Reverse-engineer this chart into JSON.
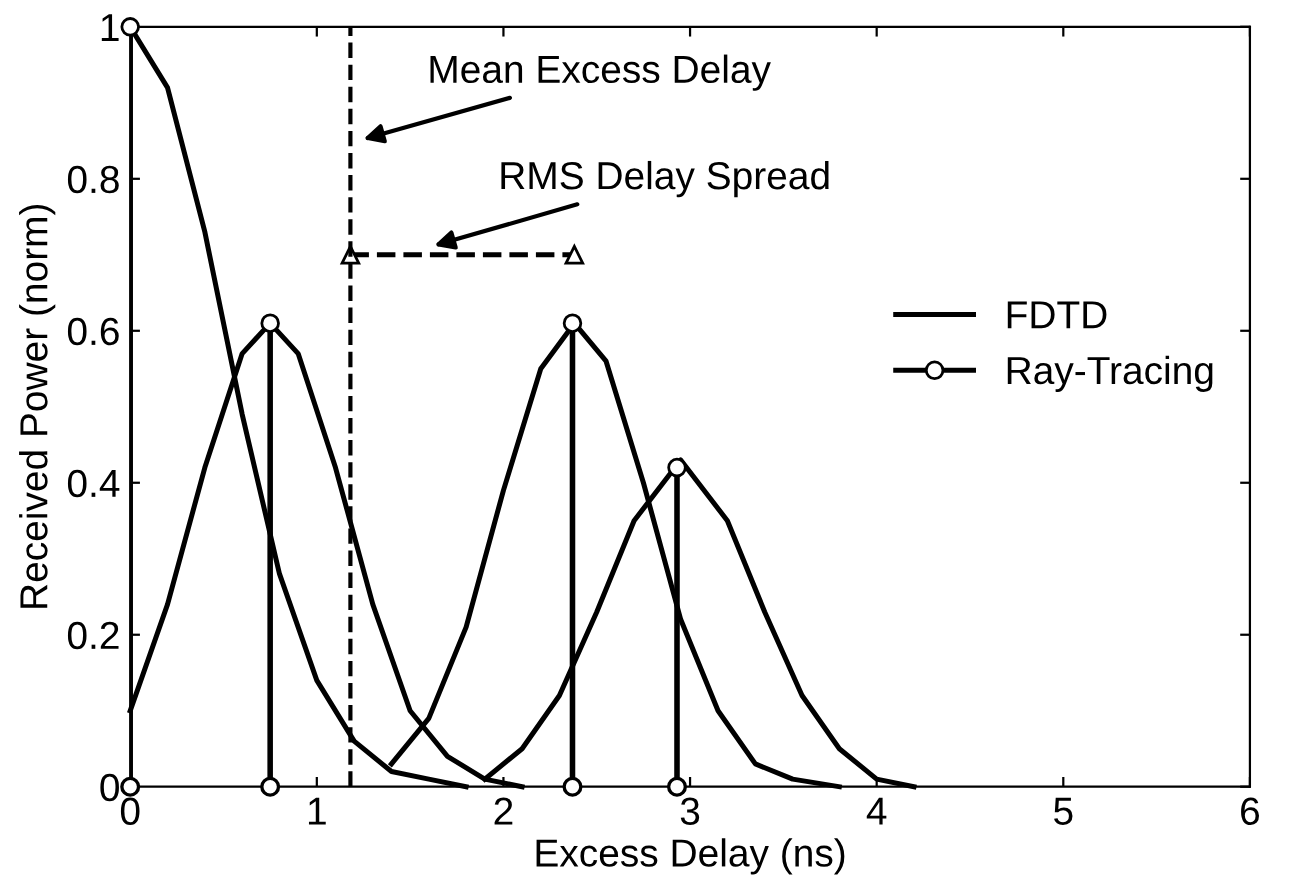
{
  "chart_data": {
    "type": "line",
    "xlabel": "Excess Delay (ns)",
    "ylabel": "Received Power (norm)",
    "xlim": [
      0,
      6
    ],
    "ylim": [
      0,
      1
    ],
    "xticks": [
      0,
      1,
      2,
      3,
      4,
      5,
      6
    ],
    "yticks": [
      0,
      {
        "value": 0.2,
        "label": "0.2"
      },
      {
        "value": 0.4,
        "label": "0.4"
      },
      {
        "value": 0.6,
        "label": "0.6"
      },
      {
        "value": 0.8,
        "label": "0.8"
      },
      1
    ],
    "legend": "right",
    "grid": false,
    "series": [
      {
        "name": "FDTD",
        "color": "#000000",
        "x": [
          0,
          0.2,
          0.4,
          0.6,
          0.8,
          1.0,
          1.2,
          1.4,
          1.6,
          1.8
        ],
        "values": [
          1,
          0.92,
          0.73,
          0.49,
          0.28,
          0.14,
          0.06,
          0.02,
          0.01,
          0
        ]
      },
      {
        "color": "#000000",
        "x": [
          0,
          0.2,
          0.4,
          0.6,
          0.75,
          0.9,
          1.1,
          1.3,
          1.5,
          1.7,
          1.9,
          2.1
        ],
        "values": [
          0.1,
          0.24,
          0.42,
          0.57,
          0.61,
          0.57,
          0.42,
          0.24,
          0.1,
          0.04,
          0.01,
          0
        ]
      },
      {
        "color": "#000000",
        "x": [
          1.4,
          1.6,
          1.8,
          2.0,
          2.2,
          2.38,
          2.55,
          2.75,
          2.95,
          3.15,
          3.35,
          3.55,
          3.8
        ],
        "values": [
          0.03,
          0.09,
          0.21,
          0.39,
          0.55,
          0.61,
          0.56,
          0.4,
          0.22,
          0.1,
          0.03,
          0.01,
          0
        ]
      },
      {
        "color": "#000000",
        "x": [
          1.9,
          2.1,
          2.3,
          2.5,
          2.7,
          2.95,
          3.2,
          3.4,
          3.6,
          3.8,
          4.0,
          4.2
        ],
        "values": [
          0.01,
          0.05,
          0.12,
          0.23,
          0.35,
          0.43,
          0.35,
          0.23,
          0.12,
          0.05,
          0.01,
          0
        ]
      },
      {
        "name": "Ray-Tracing",
        "type": "lollipop",
        "color": "#000000",
        "marker": "circle",
        "x": [
          0,
          0.75,
          2.37,
          2.93
        ],
        "values": [
          1,
          0.61,
          0.61,
          0.42
        ]
      },
      {
        "type": "scatter",
        "color": "#000000",
        "marker": "circle",
        "x": [
          0,
          0.75,
          2.37,
          2.93
        ],
        "values": [
          0,
          0,
          0,
          0
        ]
      },
      {
        "color": "#000000",
        "marker": "triangle",
        "line_style": "dashed",
        "x": [
          1.18,
          2.38
        ],
        "values": [
          0.7,
          0.7
        ]
      }
    ],
    "ref_lines": [
      {
        "axis": "x",
        "value": 1.18,
        "color": "#000000",
        "line_style": "dashed"
      }
    ],
    "annotations": [
      {
        "text": "Mean Excess Delay",
        "x": 1.22,
        "y": 0.85
      },
      {
        "text": "RMS Delay Spread",
        "x": 1.6,
        "y": 0.71
      }
    ]
  }
}
